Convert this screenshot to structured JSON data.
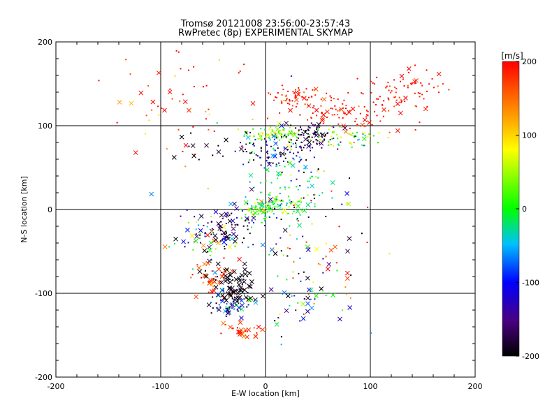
{
  "chart_data": {
    "type": "scatter",
    "title": "Tromsø 20121008 23:56:00-23:57:43",
    "subtitle": "RwPretec (8p) EXPERIMENTAL SKYMAP",
    "xlabel": "E-W location [km]",
    "ylabel": "N-S location [km]",
    "xlim": [
      -200,
      200
    ],
    "ylim": [
      -200,
      200
    ],
    "xticks": [
      "-200",
      "-100",
      "0",
      "100",
      "200"
    ],
    "yticks": [
      "-200",
      "-100",
      "0",
      "100",
      "200"
    ],
    "grid": true,
    "grid_lines": [
      -100,
      0,
      100
    ],
    "colorbar": {
      "label": "[m/s]",
      "range": [
        -200,
        200
      ],
      "ticks": [
        "-200",
        "-100",
        "0",
        "100",
        "200"
      ],
      "colormap": "rainbow black-purple-blue-cyan-green-yellow-red"
    },
    "markers": [
      "dot",
      "x"
    ],
    "clusters": [
      {
        "cx": 30,
        "cy": 135,
        "sx": 12,
        "sy": 6,
        "n": 60,
        "vmean": 185,
        "vsd": 25,
        "x_frac": 0.15
      },
      {
        "cx": 75,
        "cy": 115,
        "sx": 25,
        "sy": 10,
        "n": 90,
        "vmean": 190,
        "vsd": 20,
        "x_frac": 0.2
      },
      {
        "cx": 130,
        "cy": 140,
        "sx": 25,
        "sy": 12,
        "n": 80,
        "vmean": 190,
        "vsd": 15,
        "x_frac": 0.2
      },
      {
        "cx": 10,
        "cy": 90,
        "sx": 12,
        "sy": 4,
        "n": 90,
        "vmean": 40,
        "vsd": 40,
        "x_frac": 0.1
      },
      {
        "cx": 45,
        "cy": 88,
        "sx": 12,
        "sy": 8,
        "n": 80,
        "vmean": -180,
        "vsd": 30,
        "x_frac": 0.15
      },
      {
        "cx": 75,
        "cy": 85,
        "sx": 18,
        "sy": 6,
        "n": 60,
        "vmean": 30,
        "vsd": 60,
        "x_frac": 0.1
      },
      {
        "cx": 10,
        "cy": 70,
        "sx": 20,
        "sy": 10,
        "n": 60,
        "vmean": -150,
        "vsd": 40,
        "x_frac": 0.1
      },
      {
        "cx": -20,
        "cy": 75,
        "sx": 30,
        "sy": 10,
        "n": 40,
        "vmean": -190,
        "vsd": 20,
        "x_frac": 0.2
      },
      {
        "cx": 20,
        "cy": 40,
        "sx": 20,
        "sy": 25,
        "n": 90,
        "vmean": -30,
        "vsd": 50,
        "x_frac": 0.1
      },
      {
        "cx": 0,
        "cy": 2,
        "sx": 10,
        "sy": 6,
        "n": 80,
        "vmean": 10,
        "vsd": 40,
        "x_frac": 0.1
      },
      {
        "cx": 20,
        "cy": 8,
        "sx": 15,
        "sy": 6,
        "n": 40,
        "vmean": 20,
        "vsd": 50,
        "x_frac": 0.1
      },
      {
        "cx": -40,
        "cy": -20,
        "sx": 15,
        "sy": 12,
        "n": 80,
        "vmean": -170,
        "vsd": 40,
        "x_frac": 0.4
      },
      {
        "cx": -60,
        "cy": -40,
        "sx": 15,
        "sy": 15,
        "n": 50,
        "vmean": -60,
        "vsd": 100,
        "x_frac": 0.35
      },
      {
        "cx": -50,
        "cy": -80,
        "sx": 10,
        "sy": 10,
        "n": 40,
        "vmean": 170,
        "vsd": 40,
        "x_frac": 0.5
      },
      {
        "cx": -30,
        "cy": -90,
        "sx": 10,
        "sy": 10,
        "n": 80,
        "vmean": -195,
        "vsd": 10,
        "x_frac": 0.6
      },
      {
        "cx": -35,
        "cy": -115,
        "sx": 12,
        "sy": 8,
        "n": 50,
        "vmean": -120,
        "vsd": 60,
        "x_frac": 0.5
      },
      {
        "cx": -25,
        "cy": -145,
        "sx": 10,
        "sy": 8,
        "n": 30,
        "vmean": 185,
        "vsd": 20,
        "x_frac": 0.6
      },
      {
        "cx": 35,
        "cy": -110,
        "sx": 25,
        "sy": 15,
        "n": 40,
        "vmean": -80,
        "vsd": 100,
        "x_frac": 0.5
      },
      {
        "cx": 50,
        "cy": -50,
        "sx": 25,
        "sy": 35,
        "n": 40,
        "vmean": 150,
        "vsd": 80,
        "x_frac": 0.3
      },
      {
        "cx": -85,
        "cy": 130,
        "sx": 35,
        "sy": 35,
        "n": 60,
        "vmean": 170,
        "vsd": 70,
        "x_frac": 0.2
      },
      {
        "cx": 10,
        "cy": -20,
        "sx": 40,
        "sy": 50,
        "n": 70,
        "vmean": -100,
        "vsd": 100,
        "x_frac": 0.2
      }
    ]
  }
}
